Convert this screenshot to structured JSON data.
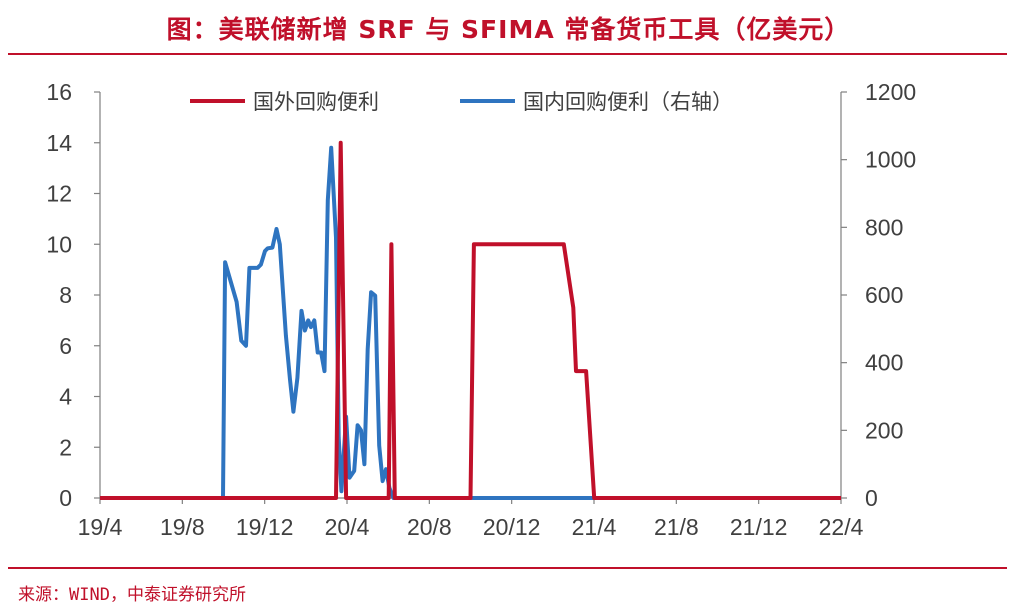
{
  "title": "图：美联储新增 SRF 与 SFIMA 常备货币工具（亿美元）",
  "source": "来源：WIND，中泰证券研究所",
  "colors": {
    "accent": "#c0102a",
    "series_foreign": "#c0102a",
    "series_domestic": "#2e74c0",
    "axis": "#808080",
    "text": "#404040"
  },
  "chart_data": {
    "type": "line",
    "title": "图：美联储新增 SRF 与 SFIMA 常备货币工具（亿美元）",
    "x_ticks": [
      "19/4",
      "19/8",
      "19/12",
      "20/4",
      "20/8",
      "20/12",
      "21/4",
      "21/8",
      "21/12",
      "22/4"
    ],
    "y_left": {
      "min": 0,
      "max": 16,
      "ticks": [
        0,
        2,
        4,
        6,
        8,
        10,
        12,
        14,
        16
      ]
    },
    "y_right": {
      "min": 0,
      "max": 1200,
      "ticks": [
        0,
        200,
        400,
        600,
        800,
        1000,
        1200
      ]
    },
    "legend": {
      "position": "top",
      "items": [
        "国外回购便利",
        "国内回购便利（右轴）"
      ]
    },
    "grid": false,
    "series": [
      {
        "name": "国外回购便利",
        "axis": "left",
        "points": [
          [
            "2019-04-01",
            0
          ],
          [
            "2020-03-15",
            0
          ],
          [
            "2020-03-22",
            14
          ],
          [
            "2020-03-30",
            0
          ],
          [
            "2020-06-01",
            0
          ],
          [
            "2020-06-05",
            10
          ],
          [
            "2020-06-10",
            0
          ],
          [
            "2020-09-30",
            0
          ],
          [
            "2020-10-05",
            10
          ],
          [
            "2021-02-15",
            10
          ],
          [
            "2021-03-01",
            7.5
          ],
          [
            "2021-03-05",
            5
          ],
          [
            "2021-03-20",
            5
          ],
          [
            "2021-04-01",
            0
          ],
          [
            "2022-04-01",
            0
          ]
        ]
      },
      {
        "name": "国内回购便利（右轴）",
        "axis": "right",
        "points": [
          [
            "2019-04-01",
            0
          ],
          [
            "2019-09-30",
            0
          ],
          [
            "2019-10-03",
            697
          ],
          [
            "2019-10-20",
            580
          ],
          [
            "2019-10-27",
            465
          ],
          [
            "2019-11-03",
            450
          ],
          [
            "2019-11-08",
            680
          ],
          [
            "2019-11-20",
            680
          ],
          [
            "2019-11-25",
            690
          ],
          [
            "2019-12-01",
            730
          ],
          [
            "2019-12-05",
            738
          ],
          [
            "2019-12-12",
            740
          ],
          [
            "2019-12-18",
            795
          ],
          [
            "2019-12-23",
            750
          ],
          [
            "2020-01-01",
            480
          ],
          [
            "2020-01-07",
            350
          ],
          [
            "2020-01-12",
            255
          ],
          [
            "2020-01-18",
            355
          ],
          [
            "2020-01-24",
            553
          ],
          [
            "2020-01-29",
            495
          ],
          [
            "2020-02-03",
            525
          ],
          [
            "2020-02-07",
            505
          ],
          [
            "2020-02-12",
            525
          ],
          [
            "2020-02-17",
            430
          ],
          [
            "2020-02-22",
            430
          ],
          [
            "2020-02-27",
            375
          ],
          [
            "2020-03-03",
            880
          ],
          [
            "2020-03-08",
            1035
          ],
          [
            "2020-03-15",
            770
          ],
          [
            "2020-03-19",
            180
          ],
          [
            "2020-03-23",
            20
          ],
          [
            "2020-03-30",
            240
          ],
          [
            "2020-04-04",
            60
          ],
          [
            "2020-04-11",
            80
          ],
          [
            "2020-04-16",
            215
          ],
          [
            "2020-04-21",
            200
          ],
          [
            "2020-04-26",
            100
          ],
          [
            "2020-05-01",
            440
          ],
          [
            "2020-05-06",
            608
          ],
          [
            "2020-05-12",
            598
          ],
          [
            "2020-05-18",
            155
          ],
          [
            "2020-05-23",
            50
          ],
          [
            "2020-05-28",
            85
          ],
          [
            "2020-06-02",
            30
          ],
          [
            "2020-06-08",
            0
          ],
          [
            "2022-04-01",
            0
          ]
        ]
      }
    ]
  }
}
